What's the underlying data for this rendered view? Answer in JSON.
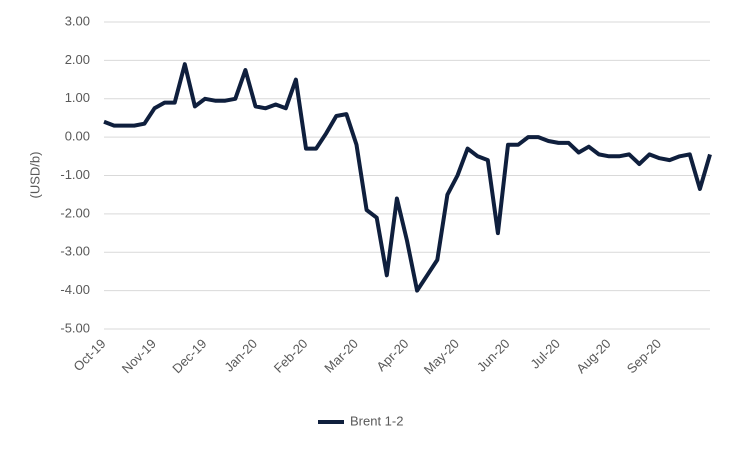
{
  "chart_data": {
    "type": "line",
    "y_label": "(USD/b)",
    "categories": [
      "Oct-19",
      null,
      null,
      null,
      null,
      "Nov-19",
      null,
      null,
      null,
      null,
      "Dec-19",
      null,
      null,
      null,
      null,
      "Jan-20",
      null,
      null,
      null,
      null,
      "Feb-20",
      null,
      null,
      null,
      null,
      "Mar-20",
      null,
      null,
      null,
      null,
      "Apr-20",
      null,
      null,
      null,
      null,
      "May-20",
      null,
      null,
      null,
      null,
      "Jun-20",
      null,
      null,
      null,
      null,
      "Jul-20",
      null,
      null,
      null,
      null,
      "Aug-20",
      null,
      null,
      null,
      null,
      "Sep-20",
      null,
      null,
      null,
      null,
      null
    ],
    "series": [
      {
        "name": "Brent 1-2",
        "color": "#0f1f3d",
        "values": [
          0.4,
          0.3,
          0.3,
          0.3,
          0.35,
          0.75,
          0.9,
          0.9,
          1.9,
          0.8,
          1.0,
          0.95,
          0.95,
          1.0,
          1.75,
          0.8,
          0.75,
          0.85,
          0.75,
          1.5,
          -0.3,
          -0.3,
          0.1,
          0.55,
          0.6,
          -0.2,
          -1.9,
          -2.1,
          -3.6,
          -1.6,
          -2.7,
          -4.0,
          -3.6,
          -3.2,
          -1.5,
          -1.0,
          -0.3,
          -0.5,
          -0.6,
          -2.5,
          -0.2,
          -0.2,
          0.0,
          0.0,
          -0.1,
          -0.15,
          -0.15,
          -0.4,
          -0.25,
          -0.45,
          -0.5,
          -0.5,
          -0.45,
          -0.7,
          -0.45,
          -0.55,
          -0.6,
          -0.5,
          -0.45,
          -1.35,
          -0.45
        ]
      }
    ],
    "ylim": [
      -5,
      3
    ],
    "yticks": [
      {
        "value": 3,
        "label": "3.00"
      },
      {
        "value": 2,
        "label": "2.00"
      },
      {
        "value": 1,
        "label": "1.00"
      },
      {
        "value": 0,
        "label": "0.00"
      },
      {
        "value": -1,
        "label": "-1.00"
      },
      {
        "value": -2,
        "label": "-2.00"
      },
      {
        "value": -3,
        "label": "-3.00"
      },
      {
        "value": -4,
        "label": "-4.00"
      },
      {
        "value": -5,
        "label": "-5.00"
      }
    ],
    "grid": true,
    "legend": "bottom"
  }
}
